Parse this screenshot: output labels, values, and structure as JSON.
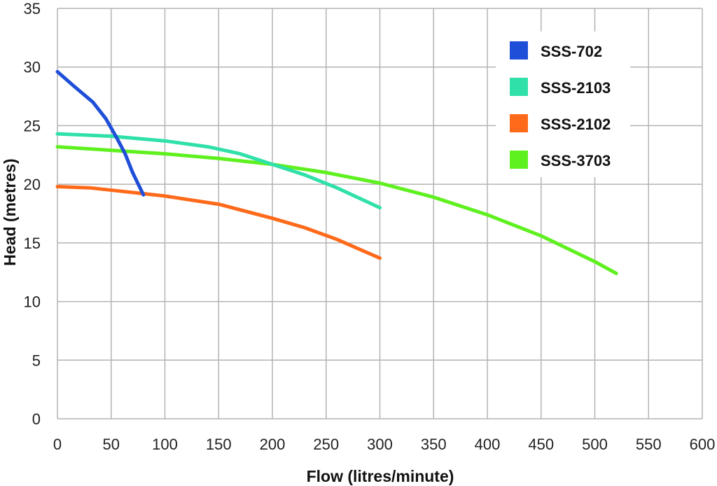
{
  "chart_data": {
    "type": "line",
    "xlabel": "Flow (litres/minute)",
    "ylabel": "Head (metres)",
    "xlim": [
      0,
      600
    ],
    "ylim": [
      0,
      35
    ],
    "xticks": [
      0,
      50,
      100,
      150,
      200,
      250,
      300,
      350,
      400,
      450,
      500,
      550,
      600
    ],
    "yticks": [
      0,
      5,
      10,
      15,
      20,
      25,
      30,
      35
    ],
    "grid": true,
    "legend_position": "top-right",
    "series": [
      {
        "name": "SSS-702",
        "color": "#1f4fd8",
        "x": [
          0,
          15,
          33,
          45,
          55,
          63,
          70,
          80
        ],
        "y": [
          29.6,
          28.4,
          27.0,
          25.6,
          24.0,
          22.6,
          21.0,
          19.1
        ]
      },
      {
        "name": "SSS-2103",
        "color": "#2fe0a8",
        "x": [
          0,
          50,
          100,
          140,
          170,
          200,
          230,
          260,
          300
        ],
        "y": [
          24.3,
          24.1,
          23.7,
          23.2,
          22.6,
          21.7,
          20.8,
          19.7,
          18.0
        ]
      },
      {
        "name": "SSS-2102",
        "color": "#ff6a1a",
        "x": [
          0,
          30,
          60,
          100,
          150,
          200,
          230,
          260,
          300
        ],
        "y": [
          19.8,
          19.7,
          19.4,
          19.0,
          18.3,
          17.1,
          16.3,
          15.3,
          13.7
        ]
      },
      {
        "name": "SSS-3703",
        "color": "#5ef01f",
        "x": [
          0,
          50,
          100,
          150,
          200,
          250,
          300,
          350,
          400,
          450,
          500,
          520
        ],
        "y": [
          23.2,
          22.9,
          22.6,
          22.2,
          21.7,
          21.0,
          20.1,
          18.9,
          17.4,
          15.6,
          13.4,
          12.4
        ]
      }
    ]
  }
}
